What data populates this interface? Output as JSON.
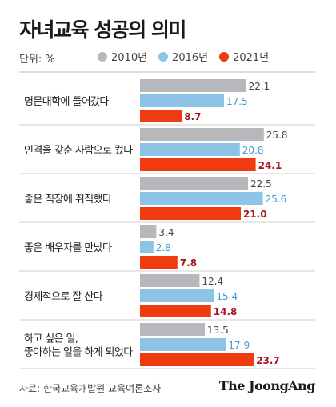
{
  "header": {
    "title": "자녀교육 성공의 의미",
    "unit": "단위: %"
  },
  "footer": {
    "source": "자료: 한국교육개발원 교육여론조사",
    "brand": "The JoongAng"
  },
  "colors": {
    "2010": "#b6b8bb",
    "2016": "#8ec3e8",
    "2021": "#f03a0f",
    "label_2010": "#444444",
    "label_2016": "#3a9bd6",
    "label_2021": "#a8141e"
  },
  "chart_data": {
    "type": "bar",
    "orientation": "horizontal",
    "title": "자녀교육 성공의 의미",
    "unit": "단위: %",
    "categories": [
      [
        "명문대학에 들어갔다"
      ],
      [
        "인격을 갖춘 사람으로 컸다"
      ],
      [
        "좋은 직장에 취직했다"
      ],
      [
        "좋은 배우자를 만났다"
      ],
      [
        "경제적으로 잘 산다"
      ],
      [
        "하고 싶은 일,",
        "좋아하는 일을 하게 되었다"
      ]
    ],
    "series": [
      {
        "name": "2010년",
        "key": "2010",
        "values": [
          22.1,
          25.8,
          22.5,
          3.4,
          12.4,
          13.5
        ]
      },
      {
        "name": "2016년",
        "key": "2016",
        "values": [
          17.5,
          20.8,
          25.6,
          2.8,
          15.4,
          17.9
        ]
      },
      {
        "name": "2021년",
        "key": "2021",
        "values": [
          8.7,
          24.1,
          21.0,
          7.8,
          14.8,
          23.7
        ]
      }
    ],
    "value_labels": {
      "2010": [
        "22.1",
        "25.8",
        "22.5",
        "3.4",
        "12.4",
        "13.5"
      ],
      "2016": [
        "17.5",
        "20.8",
        "25.6",
        "2.8",
        "15.4",
        "17.9"
      ],
      "2021": [
        "8.7",
        "24.1",
        "21.0",
        "7.8",
        "14.8",
        "23.7"
      ]
    },
    "xlim": [
      0,
      30
    ],
    "grid": false,
    "legend": "top"
  }
}
